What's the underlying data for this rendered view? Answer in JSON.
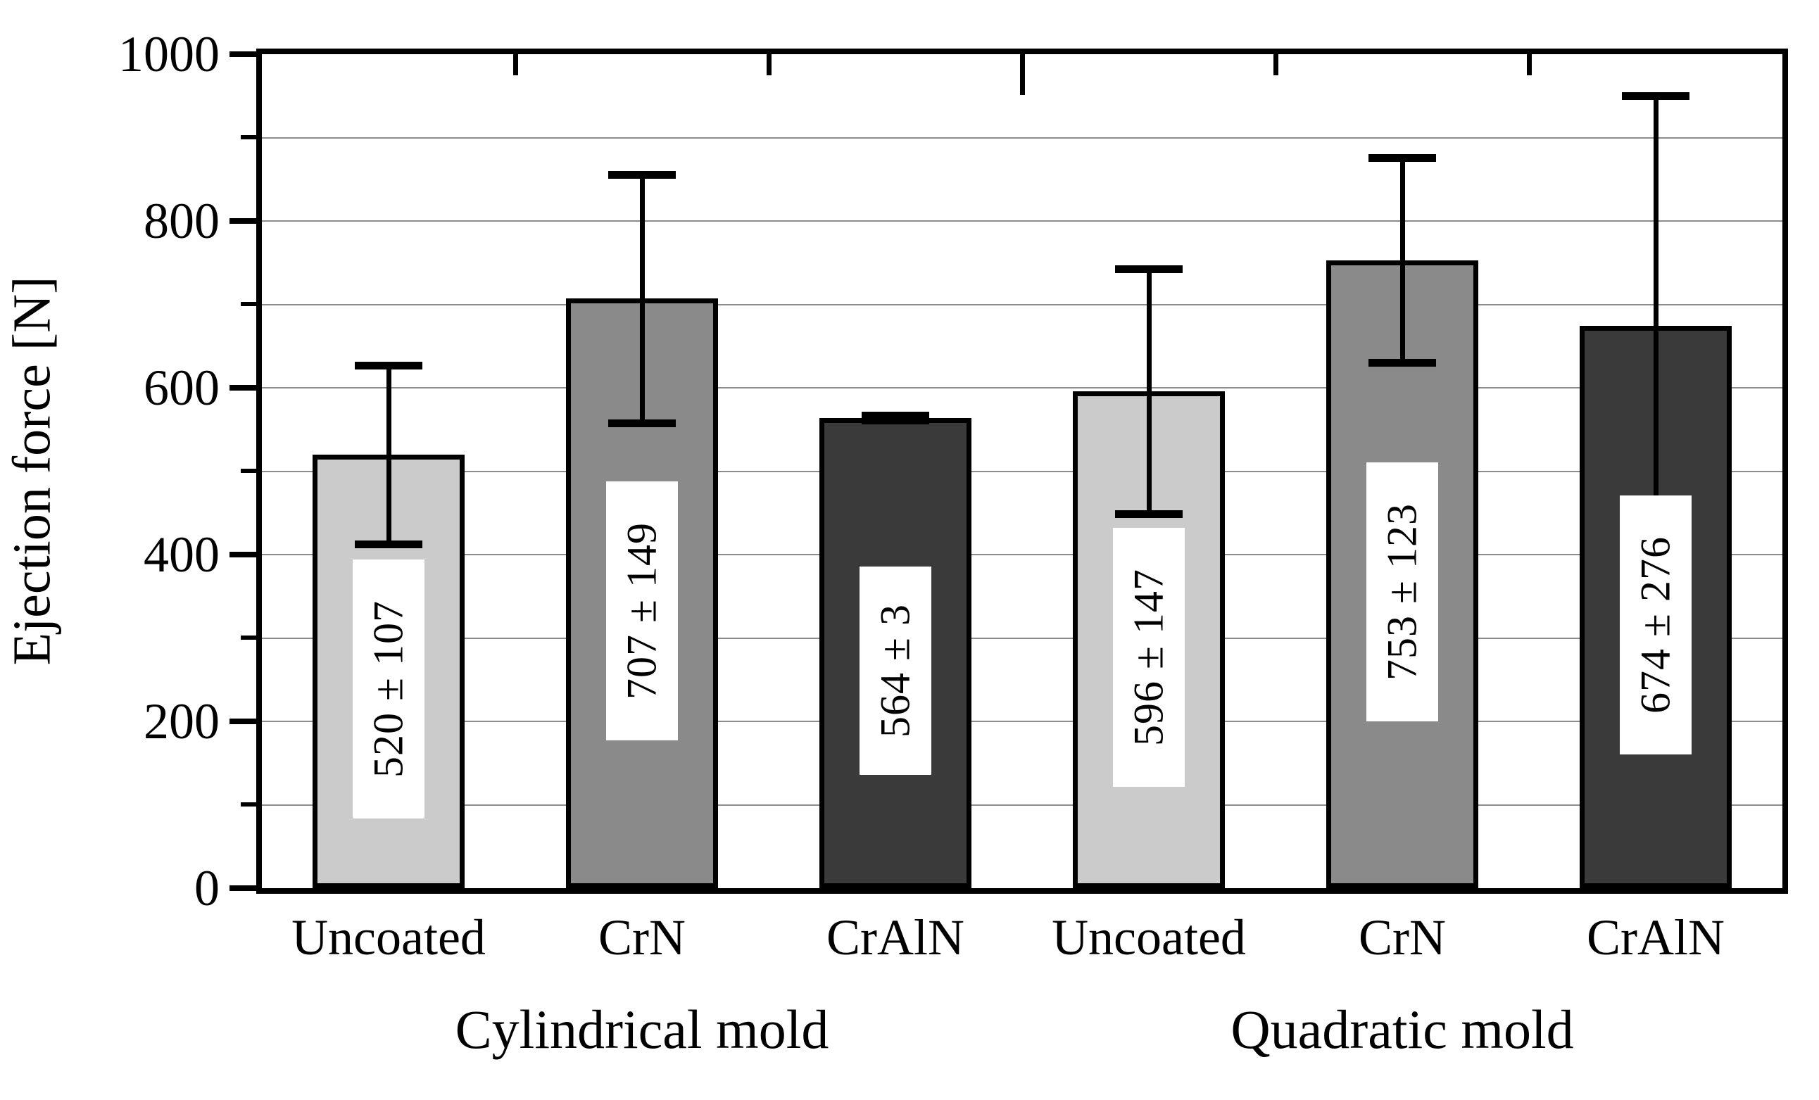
{
  "figure": {
    "background": "#ffffff"
  },
  "colors": {
    "axis": "#000000",
    "gridline": "#8c8c8c",
    "bar_border": "#000000",
    "error_bar": "#000000",
    "value_box_background": "#ffffff",
    "text": "#000000",
    "fill_light_gray": "#cbcbcb",
    "fill_medium_gray": "#8a8a8a",
    "fill_dark_gray": "#3a3a3a"
  },
  "chart_data": {
    "type": "bar",
    "title": "",
    "xlabel": "",
    "ylabel": "Ejection force [N]",
    "ylim": [
      0,
      1000
    ],
    "y_major_tick_step": 200,
    "y_minor_tick_step": 100,
    "grid": "horizontal gray lines every 100 N",
    "legend": "none",
    "y_tick_labels": [
      "0",
      "200",
      "400",
      "600",
      "800",
      "1000"
    ],
    "group_labels": [
      "Cylindrical mold",
      "Quadratic mold"
    ],
    "categories": [
      "Uncoated",
      "CrN",
      "CrAlN",
      "Uncoated",
      "CrN",
      "CrAlN"
    ],
    "series": [
      {
        "group": "Cylindrical mold",
        "category": "Uncoated",
        "value": 520,
        "error": 107,
        "bar_label": "520 ± 107",
        "fill": "#cbcbcb"
      },
      {
        "group": "Cylindrical mold",
        "category": "CrN",
        "value": 707,
        "error": 149,
        "bar_label": "707 ± 149",
        "fill": "#8a8a8a"
      },
      {
        "group": "Cylindrical mold",
        "category": "CrAlN",
        "value": 564,
        "error": 3,
        "bar_label": "564 ± 3",
        "fill": "#3a3a3a"
      },
      {
        "group": "Quadratic mold",
        "category": "Uncoated",
        "value": 596,
        "error": 147,
        "bar_label": "596 ± 147",
        "fill": "#cbcbcb"
      },
      {
        "group": "Quadratic mold",
        "category": "CrN",
        "value": 753,
        "error": 123,
        "bar_label": "753 ± 123",
        "fill": "#8a8a8a"
      },
      {
        "group": "Quadratic mold",
        "category": "CrAlN",
        "value": 674,
        "error": 276,
        "bar_label": "674 ± 276",
        "fill": "#3a3a3a"
      }
    ]
  }
}
